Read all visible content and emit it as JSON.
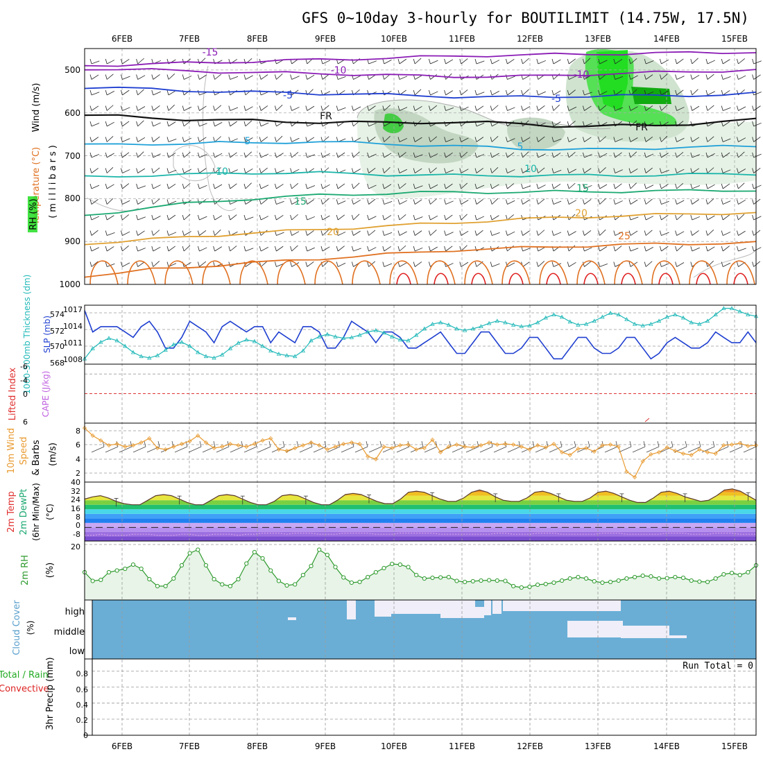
{
  "title": "GFS 0~10day 3-hourly for BOUTILIMIT (14.75W, 17.5N)",
  "dates": [
    "6FEB",
    "7FEB",
    "8FEB",
    "9FEB",
    "10FEB",
    "11FEB",
    "12FEB",
    "13FEB",
    "14FEB",
    "15FEB"
  ],
  "colors": {
    "temp_purple": "#8a1bb5",
    "temp_blue": "#1f3fd0",
    "temp_cyan": "#1ea0d8",
    "temp_teal": "#18b4a8",
    "temp_green": "#1aa870",
    "temp_orange": "#e0a030",
    "temp_dorange": "#e07020",
    "temp_red": "#e02020",
    "rh_green": "#22dd22",
    "slp": "#1f3fd0",
    "thick": "#20b8b8",
    "wind10": "#e89a30",
    "cloud": "#6aaed6",
    "rh2m": "#2e9a2e",
    "precip_green": "#22aa22",
    "precip_red": "#dd2222"
  },
  "chart_data": [
    {
      "type": "line",
      "panel": "upper-air",
      "ylabel_parts": [
        "Wind (m/s)",
        "Temperature (°C)",
        "RH (%)"
      ],
      "yunit": "(millibars)",
      "y_ticks": [
        "500",
        "600",
        "700",
        "800",
        "900",
        "1000"
      ],
      "ylim": [
        450,
        1000
      ],
      "isotherms": [
        {
          "label": "-15",
          "pressure": [
            490,
            488,
            486,
            484,
            482,
            480,
            478,
            476,
            474,
            472,
            470,
            468,
            466,
            465,
            464,
            463,
            462,
            461,
            460,
            459,
            458
          ]
        },
        {
          "label": "-10",
          "pressure": [
            497,
            498,
            500,
            502,
            504,
            506,
            507,
            508,
            510,
            512,
            514,
            515,
            515,
            515,
            513,
            510,
            508,
            506,
            504,
            502,
            500
          ]
        },
        {
          "label": "-5",
          "pressure": [
            540,
            542,
            545,
            548,
            550,
            552,
            553,
            555,
            556,
            558,
            560,
            562,
            563,
            563,
            562,
            561,
            560,
            560,
            559,
            558,
            555
          ]
        },
        {
          "label": "FR",
          "pressure": [
            605,
            608,
            612,
            615,
            617,
            618,
            620,
            622,
            622,
            623,
            622,
            622,
            623,
            625,
            630,
            632,
            630,
            628,
            626,
            622,
            615
          ]
        },
        {
          "label": "5",
          "pressure": [
            675,
            674,
            672,
            672,
            670,
            670,
            668,
            668,
            670,
            672,
            675,
            678,
            680,
            683,
            685,
            686,
            684,
            682,
            680,
            679,
            678
          ]
        },
        {
          "label": "10",
          "pressure": [
            750,
            748,
            745,
            744,
            742,
            740,
            740,
            740,
            742,
            744,
            745,
            746,
            746,
            746,
            746,
            746,
            746,
            745,
            744,
            743,
            742
          ]
        },
        {
          "label": "15",
          "pressure": [
            840,
            830,
            820,
            812,
            806,
            800,
            796,
            792,
            790,
            788,
            786,
            785,
            785,
            785,
            784,
            784,
            783,
            782,
            782,
            781,
            780
          ]
        },
        {
          "label": "20",
          "pressure": [
            905,
            900,
            895,
            890,
            885,
            880,
            876,
            872,
            868,
            864,
            860,
            856,
            852,
            848,
            845,
            842,
            840,
            838,
            836,
            834,
            833
          ]
        },
        {
          "label": "25",
          "pressure": [
            980,
            975,
            965,
            960,
            955,
            950,
            945,
            940,
            935,
            930,
            925,
            920,
            918,
            915,
            912,
            910,
            908,
            906,
            905,
            904,
            903
          ]
        }
      ],
      "isotherm_labels": [
        "-15",
        "-10",
        "-5",
        "FR",
        "5",
        "10",
        "15",
        "20",
        "25"
      ]
    },
    {
      "type": "line",
      "panel": "slp-thickness",
      "ylabel_left": "1000-500mb Thickness (dm)",
      "ylabel_right": "SLP (mb)",
      "left_ticks": [
        "574",
        "572",
        "570",
        "568"
      ],
      "right_ticks": [
        "1017",
        "1014",
        "1011",
        "1008"
      ],
      "slp_range": [
        1007,
        1018
      ],
      "thickness_range": [
        567.5,
        575
      ],
      "slp": [
        1017,
        1013,
        1014,
        1014,
        1014,
        1013,
        1012,
        1014,
        1015,
        1013,
        1010,
        1010,
        1012,
        1015,
        1014,
        1013,
        1011,
        1014,
        1015,
        1014,
        1013,
        1014,
        1014,
        1011,
        1013,
        1012,
        1011,
        1014,
        1014,
        1013,
        1010,
        1010,
        1012,
        1015,
        1014,
        1013,
        1011,
        1013,
        1013,
        1012,
        1010,
        1010,
        1011,
        1012,
        1013,
        1011,
        1009,
        1009,
        1011,
        1013,
        1013,
        1011,
        1009,
        1009,
        1010,
        1012,
        1012,
        1010,
        1008,
        1008,
        1010,
        1012,
        1012,
        1010,
        1009,
        1009,
        1010,
        1012,
        1012,
        1010,
        1008,
        1009,
        1011,
        1012,
        1011,
        1010,
        1010,
        1011,
        1013,
        1012,
        1011,
        1011,
        1013,
        1011
      ],
      "thickness": [
        568.2,
        569.5,
        570.3,
        570.8,
        570.5,
        569.8,
        569.0,
        568.5,
        568.3,
        568.6,
        569.3,
        570.0,
        570.3,
        569.8,
        569.0,
        568.5,
        568.3,
        568.7,
        569.5,
        570.2,
        570.6,
        570.4,
        569.8,
        569.2,
        568.8,
        568.6,
        568.5,
        569.2,
        570.5,
        571.0,
        571.3,
        571.0,
        570.8,
        570.9,
        571.2,
        571.6,
        571.8,
        571.5,
        571.0,
        570.6,
        570.5,
        571.2,
        572.0,
        572.6,
        572.8,
        572.5,
        572.0,
        571.8,
        572.0,
        572.3,
        572.7,
        573.0,
        572.8,
        572.5,
        572.3,
        572.4,
        572.8,
        573.4,
        573.8,
        573.5,
        572.9,
        572.5,
        572.6,
        573.0,
        573.5,
        574.0,
        573.8,
        573.2,
        572.6,
        572.4,
        572.6,
        573.0,
        573.5,
        573.8,
        573.4,
        572.8,
        572.6,
        573.0,
        573.8,
        574.6,
        574.6,
        574.2,
        573.8,
        573.6
      ]
    },
    {
      "type": "line",
      "panel": "li-cape",
      "ylabel_left": "Lifted Index",
      "ylabel_right": "CAPE (J/kg)",
      "y_ticks": [
        "-4",
        "0",
        "6",
        "-6"
      ],
      "tick_values": [
        -4,
        0,
        6,
        -6
      ],
      "ylim": [
        -6,
        6
      ],
      "li_zero": 0
    },
    {
      "type": "line",
      "panel": "wind10m",
      "ylabel": "10m Wind Speed & Barbs (m/s)",
      "ylabel_parts": [
        "10m Wind",
        "Speed",
        "& Barbs",
        "(m/s)"
      ],
      "y_ticks": [
        "8",
        "6",
        "4",
        "2"
      ],
      "ylim": [
        0.5,
        9
      ],
      "speed": [
        8.3,
        7.2,
        6.5,
        5.8,
        6.0,
        5.6,
        5.8,
        6.2,
        6.8,
        5.4,
        5.2,
        5.6,
        6.0,
        6.4,
        7.2,
        6.2,
        5.4,
        5.6,
        6.0,
        5.8,
        5.6,
        6.0,
        6.5,
        6.8,
        5.2,
        5.0,
        5.4,
        5.8,
        6.2,
        5.8,
        5.2,
        5.6,
        6.0,
        6.2,
        6.0,
        4.2,
        3.8,
        5.6,
        5.4,
        5.8,
        5.9,
        5.2,
        5.4,
        6.6,
        4.8,
        5.6,
        5.9,
        5.6,
        5.5,
        5.8,
        6.2,
        5.9,
        6.0,
        5.9,
        5.6,
        5.2,
        5.8,
        5.5,
        6.0,
        4.8,
        4.4,
        5.3,
        5.4,
        4.9,
        5.8,
        5.9,
        5.6,
        2.0,
        1.2,
        3.5,
        4.5,
        4.8,
        5.5,
        5.0,
        4.6,
        4.4,
        5.2,
        4.8,
        4.6,
        5.8,
        5.9,
        6.1,
        5.7,
        5.8
      ]
    },
    {
      "type": "area",
      "panel": "temp2m",
      "ylabel_parts": [
        "2m Temp",
        "2m DewPt",
        "(6hr Min/Max)",
        "(°C)"
      ],
      "y_ticks": [
        "40",
        "32",
        "24",
        "16",
        "8",
        "0",
        "-8"
      ],
      "ylim": [
        -12,
        40
      ],
      "temp": [
        25,
        27,
        28,
        26,
        23,
        21,
        20,
        20,
        24,
        28,
        29,
        28,
        25,
        22,
        20,
        20,
        24,
        28,
        29,
        28,
        25,
        22,
        20,
        20,
        23,
        28,
        29,
        28,
        25,
        22,
        20,
        20,
        24,
        29,
        30,
        29,
        26,
        23,
        21,
        21,
        25,
        31,
        32,
        31,
        28,
        25,
        23,
        23,
        26,
        31,
        33,
        31,
        27,
        24,
        23,
        23,
        26,
        31,
        32,
        30,
        27,
        24,
        23,
        23,
        26,
        31,
        32,
        30,
        27,
        24,
        22,
        22,
        26,
        31,
        32,
        30,
        27,
        25,
        23,
        24,
        28,
        33,
        34,
        32,
        28,
        24
      ],
      "dewpt": [
        -7,
        -7,
        -6,
        -7,
        -7,
        -7,
        -6,
        -6,
        -6,
        -7,
        -7,
        -7,
        -6,
        -6,
        -7,
        -7,
        -6,
        -6,
        -6,
        -7,
        -6,
        -6,
        -5,
        -5,
        -5,
        -6,
        -5,
        -5,
        -5,
        -6,
        -6,
        -6,
        -5,
        -5,
        -5,
        -5,
        -6,
        -6,
        -6,
        -5,
        -5,
        -5,
        -5,
        -5,
        -6,
        -6,
        -6,
        -6,
        -6,
        -6,
        -6,
        -5,
        -5,
        -6,
        -6,
        -6,
        -5,
        -5,
        -5,
        -6,
        -6,
        -6,
        -6,
        -6,
        -5,
        -5,
        -5,
        -6,
        -6,
        -6,
        -6,
        -6,
        -5,
        -5,
        -5,
        -6,
        -6,
        -6,
        -5,
        -5,
        -5,
        -6,
        -6,
        -6
      ],
      "band_colors": [
        "#7a4fd0",
        "#9c70e0",
        "#b590ee",
        "#c8a8f4",
        "#2080f0",
        "#3fa0f8",
        "#48d8e8",
        "#20c070",
        "#7ad040",
        "#e6e640",
        "#f0c020",
        "#f09020",
        "#e05010",
        "#c02010"
      ]
    },
    {
      "type": "line",
      "panel": "rh2m",
      "ylabel": "2m RH (%)",
      "ylabel_parts": [
        "2m RH",
        "(%)"
      ],
      "y_ticks": [
        "20"
      ],
      "ylim": [
        4,
        21
      ],
      "rh": [
        12,
        9.5,
        9.8,
        12,
        12.5,
        13,
        14.2,
        13,
        10,
        8,
        8,
        10.2,
        14,
        17.5,
        18.5,
        14,
        10,
        8.5,
        8,
        10,
        14.5,
        17.8,
        16,
        12.5,
        9.5,
        8.2,
        8.5,
        11.2,
        13.8,
        18.5,
        17,
        13.5,
        10.5,
        9,
        9.2,
        10.6,
        12,
        13.2,
        14.4,
        14.2,
        13.5,
        11.2,
        10.2,
        10.4,
        10.5,
        10.6,
        9.5,
        9.2,
        9.4,
        9.6,
        9.7,
        9.6,
        9.5,
        8,
        7.6,
        7.8,
        8.4,
        8.6,
        9,
        9.6,
        10.2,
        10.6,
        10.2,
        9.4,
        9,
        9.2,
        9.6,
        10.2,
        10.6,
        11,
        10.8,
        10.2,
        10.3,
        10.6,
        10.4,
        9.6,
        9.3,
        9.2,
        10.2,
        11.4,
        11.8,
        11.2,
        12,
        14
      ]
    },
    {
      "type": "heatmap",
      "panel": "cloud",
      "ylabel": "Cloud Cover (%)",
      "ylabel_parts": [
        "Cloud Cover",
        "(%)"
      ],
      "y_ticks": [
        "high",
        "middle",
        "low"
      ]
    },
    {
      "type": "line",
      "panel": "precip",
      "ylabel": "3hr Precip (mm)",
      "ylabel_left_parts": [
        "Total / Rain",
        "Convective"
      ],
      "y_ticks": [
        "0.8",
        "0.6",
        "0.4",
        "0.2",
        "0"
      ],
      "tick_values": [
        0.8,
        0.6,
        0.4,
        0.2,
        0
      ],
      "ylim": [
        0,
        0.95
      ],
      "run_total": "Run Total = 0"
    }
  ]
}
